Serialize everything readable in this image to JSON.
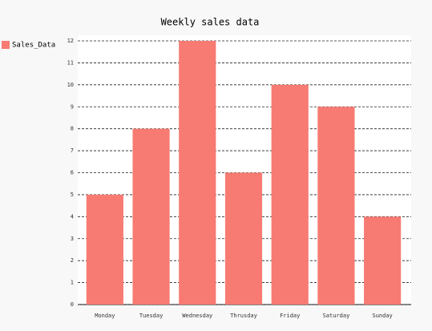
{
  "chart_data": {
    "type": "bar",
    "title": "Weekly sales data",
    "categories": [
      "Monday",
      "Tuesday",
      "Wednesday",
      "Thrusday",
      "Friday",
      "Saturday",
      "Sunday"
    ],
    "series": [
      {
        "name": "Sales_Data",
        "color": "#f77b72",
        "values": [
          5,
          8,
          12,
          6,
          10,
          9,
          4
        ]
      }
    ],
    "ylim": [
      0,
      12
    ],
    "yticks": [
      0,
      1,
      2,
      3,
      4,
      5,
      6,
      7,
      8,
      9,
      10,
      11,
      12
    ],
    "grid": true,
    "legend": "top-left"
  }
}
